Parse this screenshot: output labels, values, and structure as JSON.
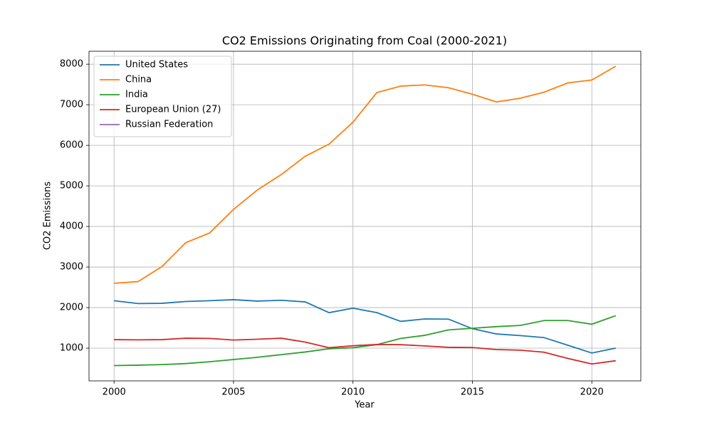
{
  "chart_data": {
    "type": "line",
    "title": "CO2 Emissions Originating from Coal (2000-2021)",
    "xlabel": "Year",
    "ylabel": "CO2 Emissions",
    "x": [
      2000,
      2001,
      2002,
      2003,
      2004,
      2005,
      2006,
      2007,
      2008,
      2009,
      2010,
      2011,
      2012,
      2013,
      2014,
      2015,
      2016,
      2017,
      2018,
      2019,
      2020,
      2021
    ],
    "series": [
      {
        "name": "United States",
        "color": "#1f77b4",
        "values": [
          2170,
          2100,
          2105,
          2150,
          2170,
          2195,
          2160,
          2180,
          2140,
          1875,
          1985,
          1875,
          1660,
          1720,
          1715,
          1480,
          1350,
          1310,
          1260,
          1070,
          880,
          1000
        ]
      },
      {
        "name": "China",
        "color": "#ff7f0e",
        "values": [
          2600,
          2640,
          3010,
          3600,
          3840,
          4420,
          4900,
          5280,
          5730,
          6030,
          6570,
          7300,
          7460,
          7490,
          7420,
          7260,
          7070,
          7160,
          7310,
          7540,
          7610,
          7950
        ]
      },
      {
        "name": "India",
        "color": "#2ca02c",
        "values": [
          570,
          580,
          595,
          620,
          665,
          720,
          775,
          840,
          905,
          985,
          1010,
          1085,
          1240,
          1315,
          1450,
          1490,
          1530,
          1560,
          1680,
          1680,
          1590,
          1800
        ]
      },
      {
        "name": "European Union (27)",
        "color": "#d62728",
        "values": [
          1210,
          1205,
          1210,
          1245,
          1240,
          1200,
          1220,
          1245,
          1150,
          1010,
          1060,
          1090,
          1085,
          1055,
          1020,
          1015,
          965,
          950,
          900,
          745,
          610,
          690
        ]
      },
      {
        "name": "Russian Federation",
        "color": "#9467bd",
        "values": [
          null,
          null,
          null,
          null,
          null,
          null,
          null,
          null,
          null,
          null,
          null,
          null,
          null,
          null,
          null,
          null,
          null,
          null,
          null,
          null,
          null,
          null
        ]
      }
    ],
    "xlim": [
      1998.95,
      2022.05
    ],
    "xticks": [
      2000,
      2005,
      2010,
      2015,
      2020
    ],
    "ylim": [
      193,
      8319
    ],
    "yticks": [
      1000,
      2000,
      3000,
      4000,
      5000,
      6000,
      7000,
      8000
    ],
    "grid": true,
    "legend": "upper left"
  }
}
